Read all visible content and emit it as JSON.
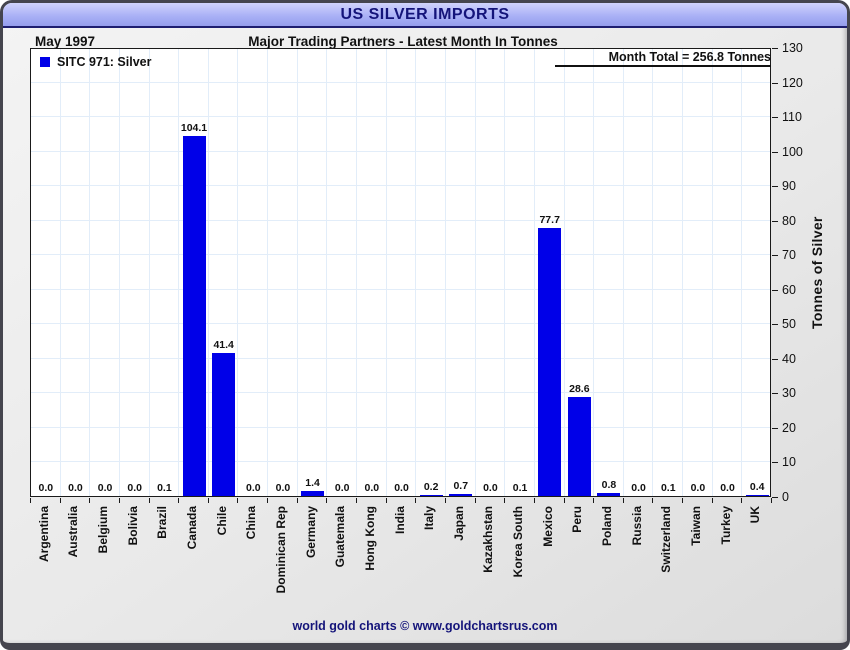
{
  "window": {
    "title": "US SILVER IMPORTS"
  },
  "header": {
    "date_label": "May 1997",
    "subtitle": "Major Trading Partners - Latest Month In Tonnes"
  },
  "legend": {
    "label": "SITC 971: Silver"
  },
  "annotations": {
    "month_total": "Month Total = 256.8 Tonnes"
  },
  "axes": {
    "y_label": "Tonnes of Silver"
  },
  "footer": {
    "credit": "world gold charts © www.goldchartsrus.com"
  },
  "colors": {
    "bar": "#0000e8",
    "grid": "#e2edf9",
    "title_text": "#14147a",
    "axis_text": "#111111"
  },
  "chart_data": {
    "type": "bar",
    "title": "US SILVER IMPORTS",
    "subtitle": "Major Trading Partners - Latest Month In Tonnes",
    "series_name": "SITC 971: Silver",
    "categories": [
      "Argentina",
      "Australia",
      "Belgium",
      "Bolivia",
      "Brazil",
      "Canada",
      "Chile",
      "China",
      "Dominican Rep",
      "Germany",
      "Guatemala",
      "Hong Kong",
      "India",
      "Italy",
      "Japan",
      "Kazakhstan",
      "Korea South",
      "Mexico",
      "Peru",
      "Poland",
      "Russia",
      "Switzerland",
      "Taiwan",
      "Turkey",
      "UK"
    ],
    "values": [
      0.0,
      0.0,
      0.0,
      0.0,
      0.1,
      104.1,
      41.4,
      0.0,
      0.0,
      1.4,
      0.0,
      0.0,
      0.0,
      0.2,
      0.7,
      0.0,
      0.1,
      77.7,
      28.6,
      0.8,
      0.0,
      0.1,
      0.0,
      0.0,
      0.4
    ],
    "month_total_tonnes": 256.8,
    "xlabel": "",
    "ylabel": "Tonnes of Silver",
    "ylim": [
      0,
      130
    ],
    "ytick_step": 10,
    "value_labels": true,
    "grid": true,
    "legend_position": "top-left",
    "y_axis_side": "right"
  }
}
